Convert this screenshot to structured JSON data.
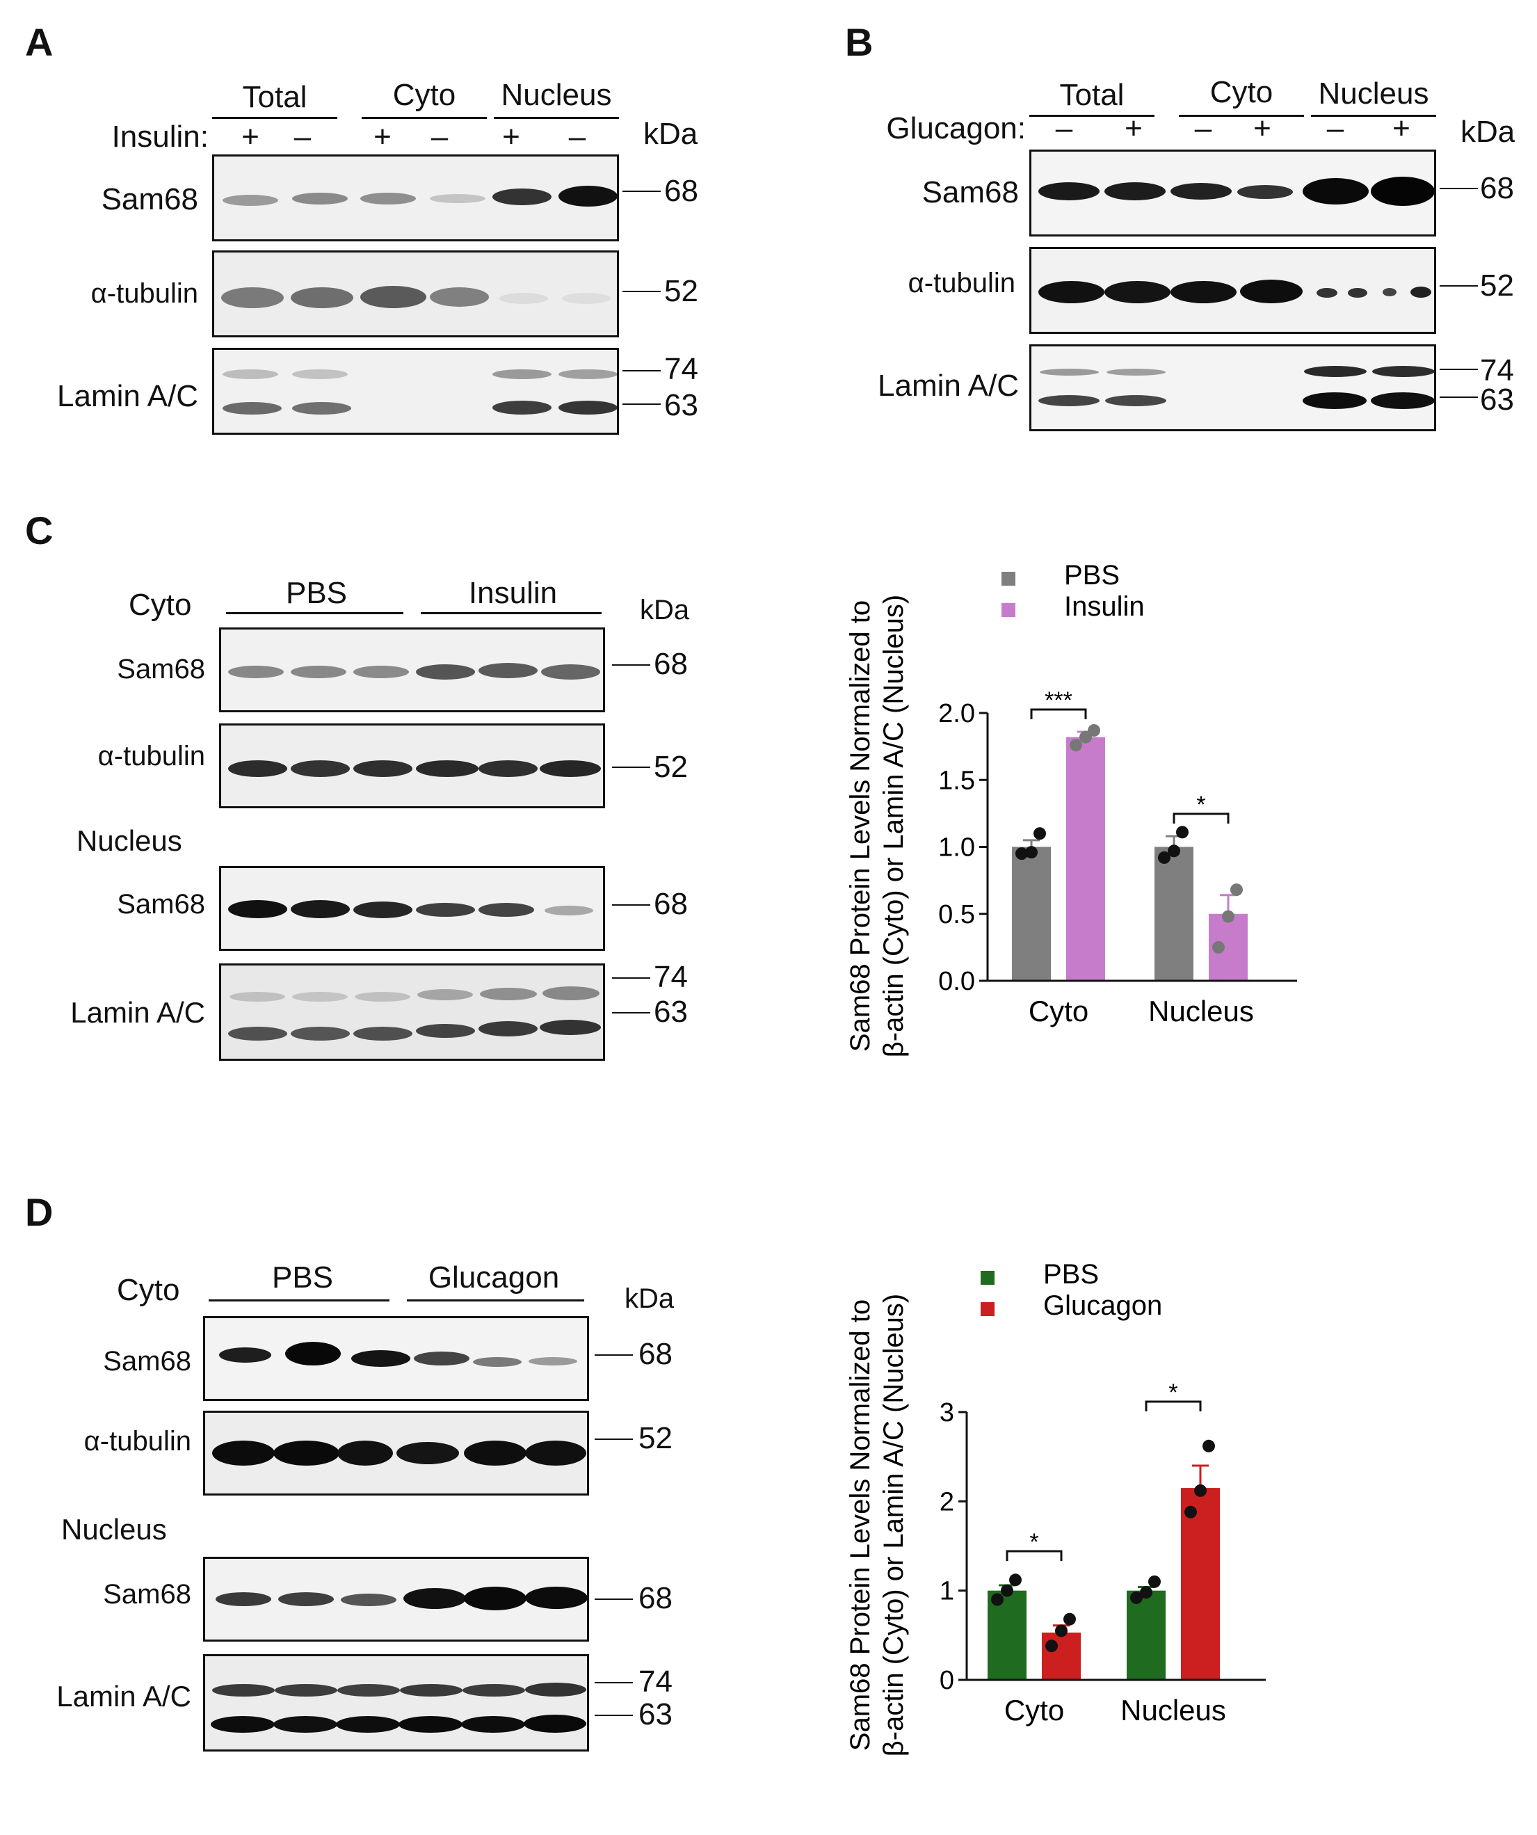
{
  "panels": {
    "A": {
      "label": "A",
      "groups": [
        "Total",
        "Cyto",
        "Nucleus"
      ],
      "treatment_label": "Insulin:",
      "signs": [
        "+",
        "–",
        "+",
        "–",
        "+",
        "–"
      ],
      "kda": "kDa",
      "rows": [
        "Sam68",
        "α-tubulin",
        "Lamin A/C"
      ],
      "markers": [
        "68",
        "52",
        "74",
        "63"
      ]
    },
    "B": {
      "label": "B",
      "groups": [
        "Total",
        "Cyto",
        "Nucleus"
      ],
      "treatment_label": "Glucagon:",
      "signs": [
        "–",
        "+",
        "–",
        "+",
        "–",
        "+"
      ],
      "kda": "kDa",
      "rows": [
        "Sam68",
        "α-tubulin",
        "Lamin A/C"
      ],
      "markers": [
        "68",
        "52",
        "74",
        "63"
      ]
    },
    "C": {
      "label": "C",
      "groups": [
        "PBS",
        "Insulin"
      ],
      "section_cyto": "Cyto",
      "section_nucleus": "Nucleus",
      "kda": "kDa",
      "rows": [
        "Sam68",
        "α-tubulin",
        "Sam68",
        "Lamin A/C"
      ],
      "markers": [
        "68",
        "52",
        "68",
        "74",
        "63"
      ]
    },
    "D": {
      "label": "D",
      "groups": [
        "PBS",
        "Glucagon"
      ],
      "section_cyto": "Cyto",
      "section_nucleus": "Nucleus",
      "kda": "kDa",
      "rows": [
        "Sam68",
        "α-tubulin",
        "Sam68",
        "Lamin A/C"
      ],
      "markers": [
        "68",
        "52",
        "68",
        "74",
        "63"
      ]
    }
  },
  "chart_data": [
    {
      "type": "bar",
      "panel": "C",
      "categories": [
        "Cyto",
        "Nucleus"
      ],
      "series": [
        {
          "name": "PBS",
          "color": "#7f7f7f",
          "values": [
            1.0,
            1.0
          ],
          "sem": [
            0.05,
            0.08
          ],
          "points": [
            [
              0.95,
              0.96,
              1.1
            ],
            [
              0.92,
              0.97,
              1.11
            ]
          ]
        },
        {
          "name": "Insulin",
          "color": "#c77ccb",
          "values": [
            1.82,
            0.5
          ],
          "sem": [
            0.04,
            0.14
          ],
          "points": [
            [
              1.76,
              1.82,
              1.87
            ],
            [
              0.25,
              0.48,
              0.68
            ]
          ]
        }
      ],
      "ylabel_line1": "Sam68 Protein Levels Normalized to",
      "ylabel_line2": "β-actin (Cyto) or Lamin A/C (Nucleus)",
      "ylim": [
        0,
        2.0
      ],
      "yticks": [
        "0.0",
        "0.5",
        "1.0",
        "1.5",
        "2.0"
      ],
      "significance": [
        "***",
        "*"
      ],
      "legend_position": "top"
    },
    {
      "type": "bar",
      "panel": "D",
      "categories": [
        "Cyto",
        "Nucleus"
      ],
      "series": [
        {
          "name": "PBS",
          "color": "#1f6b1f",
          "values": [
            1.0,
            1.0
          ],
          "sem": [
            0.06,
            0.04
          ],
          "points": [
            [
              0.9,
              1.0,
              1.12
            ],
            [
              0.92,
              0.98,
              1.1
            ]
          ]
        },
        {
          "name": "Glucagon",
          "color": "#cc1f1f",
          "values": [
            0.53,
            2.15
          ],
          "sem": [
            0.08,
            0.25
          ],
          "points": [
            [
              0.38,
              0.55,
              0.68
            ],
            [
              1.88,
              2.12,
              2.62
            ]
          ]
        }
      ],
      "ylabel_line1": "Sam68 Protein Levels Normalized to",
      "ylabel_line2": "β-actin (Cyto) or Lamin A/C (Nucleus)",
      "ylim": [
        0,
        3
      ],
      "yticks": [
        "0",
        "1",
        "2",
        "3"
      ],
      "significance": [
        "*",
        "*"
      ],
      "legend_position": "top"
    }
  ]
}
